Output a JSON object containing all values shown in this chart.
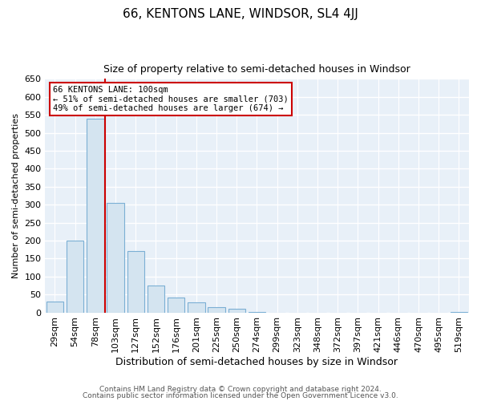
{
  "title": "66, KENTONS LANE, WINDSOR, SL4 4JJ",
  "subtitle": "Size of property relative to semi-detached houses in Windsor",
  "xlabel": "Distribution of semi-detached houses by size in Windsor",
  "ylabel": "Number of semi-detached properties",
  "categories": [
    "29sqm",
    "54sqm",
    "78sqm",
    "103sqm",
    "127sqm",
    "152sqm",
    "176sqm",
    "201sqm",
    "225sqm",
    "250sqm",
    "274sqm",
    "299sqm",
    "323sqm",
    "348sqm",
    "372sqm",
    "397sqm",
    "421sqm",
    "446sqm",
    "470sqm",
    "495sqm",
    "519sqm"
  ],
  "values": [
    30,
    200,
    540,
    305,
    170,
    75,
    42,
    28,
    15,
    10,
    2,
    0,
    0,
    0,
    0,
    0,
    0,
    0,
    0,
    0,
    2
  ],
  "bar_color": "#d4e4f0",
  "bar_edge_color": "#7bafd4",
  "vline_color": "#cc0000",
  "vline_x_index": 2.5,
  "annotation_title": "66 KENTONS LANE: 100sqm",
  "annotation_line1": "← 51% of semi-detached houses are smaller (703)",
  "annotation_line2": "49% of semi-detached houses are larger (674) →",
  "annotation_box_facecolor": "#ffffff",
  "annotation_box_edgecolor": "#cc0000",
  "ylim": [
    0,
    650
  ],
  "yticks": [
    0,
    50,
    100,
    150,
    200,
    250,
    300,
    350,
    400,
    450,
    500,
    550,
    600,
    650
  ],
  "footer1": "Contains HM Land Registry data © Crown copyright and database right 2024.",
  "footer2": "Contains public sector information licensed under the Open Government Licence v3.0.",
  "fig_bg_color": "#ffffff",
  "plot_bg_color": "#e8f0f8",
  "grid_color": "#ffffff",
  "title_fontsize": 11,
  "subtitle_fontsize": 9,
  "xlabel_fontsize": 9,
  "ylabel_fontsize": 8,
  "tick_fontsize": 8,
  "footer_fontsize": 6.5
}
